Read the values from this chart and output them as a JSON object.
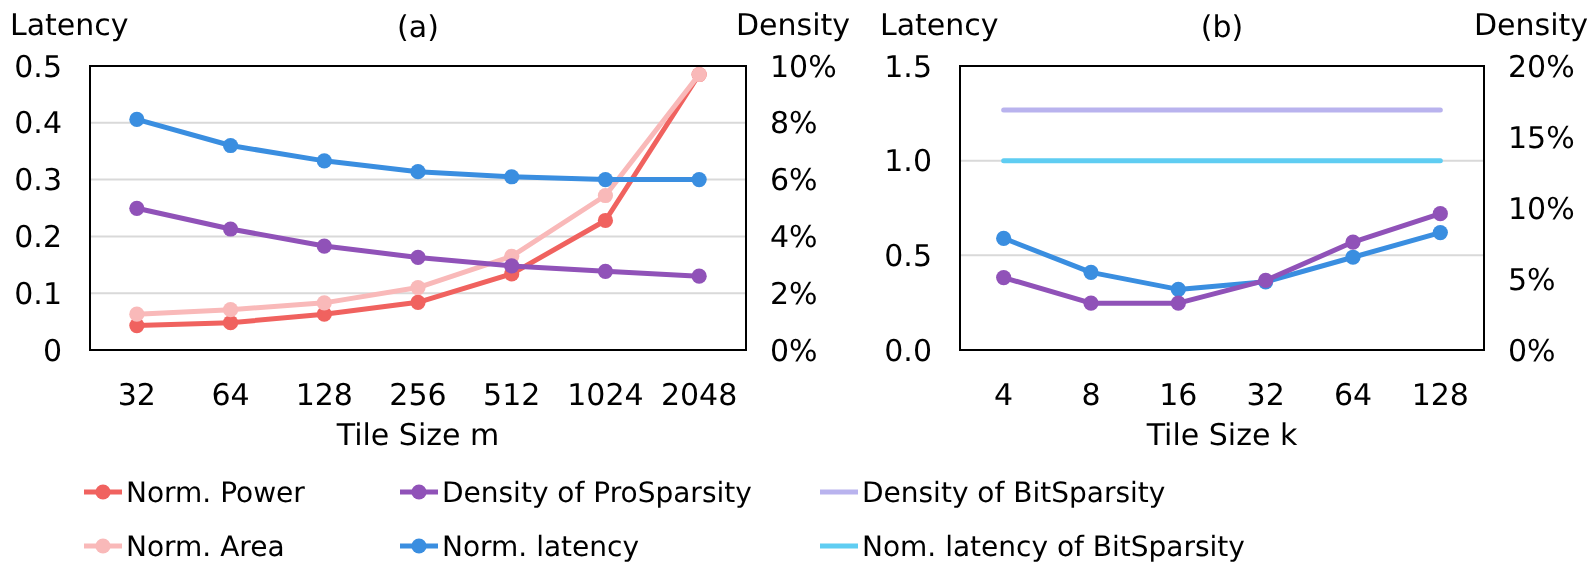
{
  "chart_data": [
    {
      "type": "line",
      "title": "(a)",
      "xlabel": "Tile Size m",
      "ylabel": "Latency",
      "y2label": "Density",
      "categories": [
        "32",
        "64",
        "128",
        "256",
        "512",
        "1024",
        "2048"
      ],
      "series": [
        {
          "name": "Norm. Power",
          "color": "#f0625f",
          "marker": "circle",
          "values": [
            0.043,
            0.048,
            0.063,
            0.084,
            0.134,
            0.228,
            0.485
          ]
        },
        {
          "name": "Norm. Area",
          "color": "#f9b9b9",
          "marker": "circle",
          "values": [
            0.063,
            0.071,
            0.083,
            0.11,
            0.165,
            0.272,
            0.485
          ]
        },
        {
          "name": "Density of ProSparsity",
          "color": "#9052b8",
          "marker": "circle",
          "axis": "y2",
          "values": [
            4.99,
            4.26,
            3.66,
            3.26,
            2.96,
            2.77,
            2.6
          ]
        },
        {
          "name": "Norm. latency",
          "color": "#3a8ee0",
          "marker": "circle",
          "values": [
            0.406,
            0.36,
            0.333,
            0.314,
            0.305,
            0.3,
            0.3
          ]
        }
      ],
      "ylim": [
        0,
        0.5
      ],
      "yticks": [
        0,
        0.1,
        0.2,
        0.3,
        0.4,
        0.5
      ],
      "y2lim": [
        0,
        10
      ],
      "y2ticks": [
        {
          "value": 0,
          "label": "0%"
        },
        {
          "value": 2,
          "label": "2%"
        },
        {
          "value": 4,
          "label": "4%"
        },
        {
          "value": 6,
          "label": "6%"
        },
        {
          "value": 8,
          "label": "8%"
        },
        {
          "value": 10,
          "label": "10%"
        }
      ],
      "grid": "y",
      "legend": "bottom"
    },
    {
      "type": "line",
      "title": "(b)",
      "xlabel": "Tile Size k",
      "ylabel": "Latency",
      "y2label": "Density",
      "categories": [
        "4",
        "8",
        "16",
        "32",
        "64",
        "128"
      ],
      "series": [
        {
          "name": "Density of BitSparsity",
          "color": "#b9b3ee",
          "marker": "none",
          "axis": "y2",
          "values": [
            16.9,
            16.9,
            16.9,
            16.9,
            16.9,
            16.9
          ]
        },
        {
          "name": "Nom. latency of BitSparsity",
          "color": "#5fcdf2",
          "marker": "none",
          "values": [
            1.0,
            1.0,
            1.0,
            1.0,
            1.0,
            1.0
          ]
        },
        {
          "color": "#3a8ee0",
          "marker": "circle",
          "values": [
            0.59,
            0.41,
            0.32,
            0.36,
            0.49,
            0.62
          ]
        },
        {
          "color": "#9052b8",
          "marker": "circle",
          "axis": "y2",
          "values": [
            5.1,
            3.3,
            3.3,
            4.9,
            7.6,
            9.6
          ]
        }
      ],
      "ylim": [
        0,
        1.5
      ],
      "yticks": [
        {
          "value": 0,
          "label": "0.0"
        },
        {
          "value": 0.5,
          "label": "0.5"
        },
        {
          "value": 1,
          "label": "1.0"
        },
        {
          "value": 1.5,
          "label": "1.5"
        }
      ],
      "y2lim": [
        0,
        20
      ],
      "y2ticks": [
        {
          "value": 0,
          "label": "0%"
        },
        {
          "value": 5,
          "label": "5%"
        },
        {
          "value": 10,
          "label": "10%"
        },
        {
          "value": 15,
          "label": "15%"
        },
        {
          "value": 20,
          "label": "20%"
        }
      ],
      "grid": "y",
      "legend": "bottom"
    }
  ]
}
